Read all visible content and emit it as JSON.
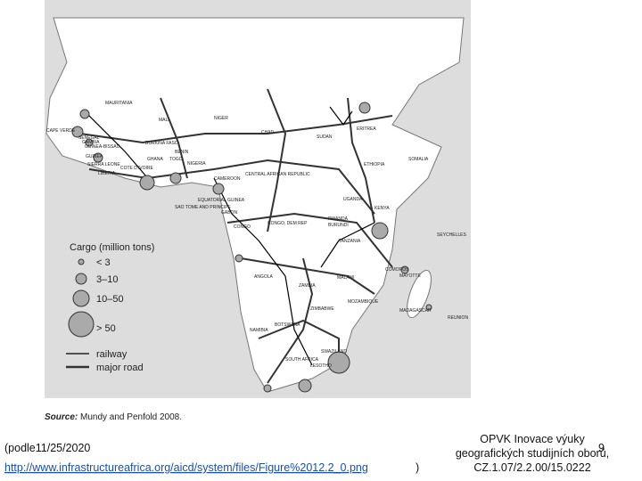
{
  "map": {
    "labels": [
      "MAURITANIA",
      "MALI",
      "NIGER",
      "CHAD",
      "SUDAN",
      "ERITREA",
      "CAPE VERDE",
      "SENEGAL",
      "GAMBIA",
      "GUINEA-BISSAU",
      "GUINEA",
      "SIERRA LEONE",
      "LIBERIA",
      "COTE D'IVOIRE",
      "BURKINA FASO",
      "GHANA",
      "BENIN",
      "TOGO",
      "NIGERIA",
      "CAMEROON",
      "CENTRAL AFRICAN REPUBLIC",
      "ETHIOPIA",
      "SOMALIA",
      "KENYA",
      "UGANDA",
      "RWANDA",
      "BURUNDI",
      "TANZANIA",
      "CONGO, DEM REP",
      "EQUATORIAL GUINEA",
      "SAO TOME AND PRINCIPE",
      "GABON",
      "CONGO",
      "ANGOLA",
      "ZAMBIA",
      "MALAWI",
      "MOZAMBIQUE",
      "ZIMBABWE",
      "BOTSWANA",
      "NAMIBIA",
      "SOUTH AFRICA",
      "LESOTHO",
      "SWAZILAND",
      "MADAGASCAR",
      "COMOROS",
      "MAYOTTE",
      "SEYCHELLES",
      "REUNION"
    ],
    "legend": {
      "title": "Cargo (million tons)",
      "sizes": [
        "< 3",
        "3–10",
        "10–50",
        "> 50"
      ],
      "railway": "railway",
      "major_road": "major road"
    },
    "source": {
      "label": "Source:",
      "text": "Mundy and Penfold 2008."
    }
  },
  "footer": {
    "date": "(podle11/25/2020",
    "url": "http://www.infrastructureafrica.org/aicd/system/files/Figure%2012.2_0.png",
    "url_close": ")",
    "project": [
      "OPVK Inovace výuky",
      "geografických studijních oborů,",
      "CZ.1.07/2.2.00/15.0222"
    ],
    "page_number": "9"
  }
}
